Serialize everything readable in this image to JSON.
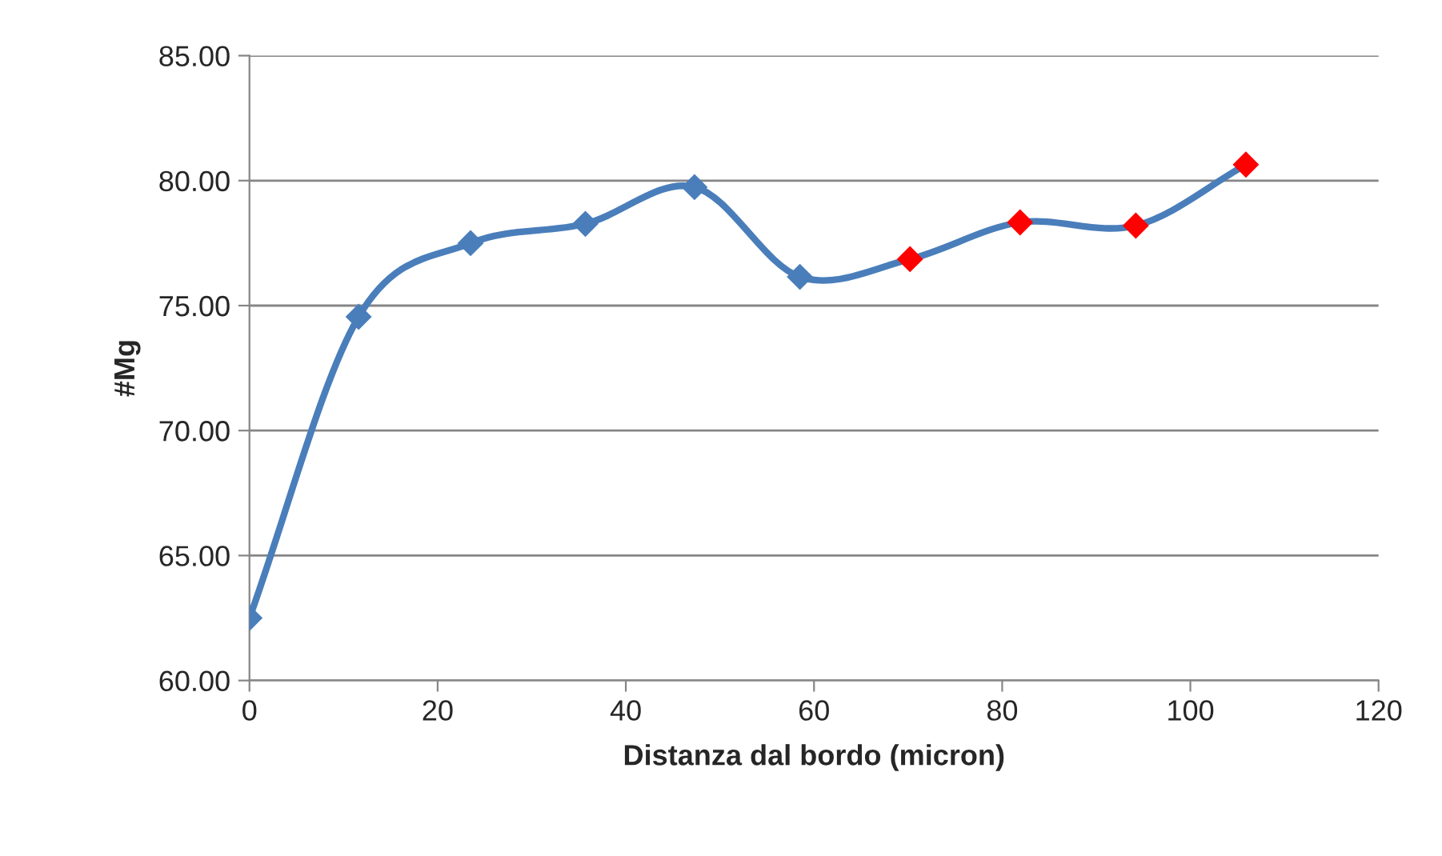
{
  "chart_data": {
    "type": "line",
    "xlabel": "Distanza dal bordo (micron)",
    "ylabel": "#Mg",
    "x": [
      0,
      11.6,
      23.5,
      35.7,
      47.3,
      58.5,
      70.2,
      81.9,
      94.2,
      105.9
    ],
    "series": [
      {
        "color": "#4a7ebb",
        "values": [
          62.5,
          74.55,
          77.5,
          78.27,
          79.74,
          76.15,
          76.86,
          78.33,
          78.2,
          80.64
        ],
        "colors": [
          "#4a7ebb",
          "#4a7ebb",
          "#4a7ebb",
          "#4a7ebb",
          "#4a7ebb",
          "#4a7ebb",
          "#ff0000",
          "#ff0000",
          "#ff0000",
          "#ff0000"
        ]
      }
    ],
    "xlim": [
      0,
      120
    ],
    "xticks": [
      0,
      20,
      40,
      60,
      80,
      100,
      120
    ],
    "ylim": [
      60,
      85
    ],
    "yticks": [
      {
        "value": 60,
        "label": "60.00"
      },
      {
        "value": 65,
        "label": "65.00"
      },
      {
        "value": 70,
        "label": "70.00"
      },
      {
        "value": 75,
        "label": "75.00"
      },
      {
        "value": 80,
        "label": "80.00"
      },
      {
        "value": 85,
        "label": "85.00"
      }
    ],
    "grid": "y",
    "marker": "diamond",
    "line_style": "solid",
    "legend": false
  }
}
